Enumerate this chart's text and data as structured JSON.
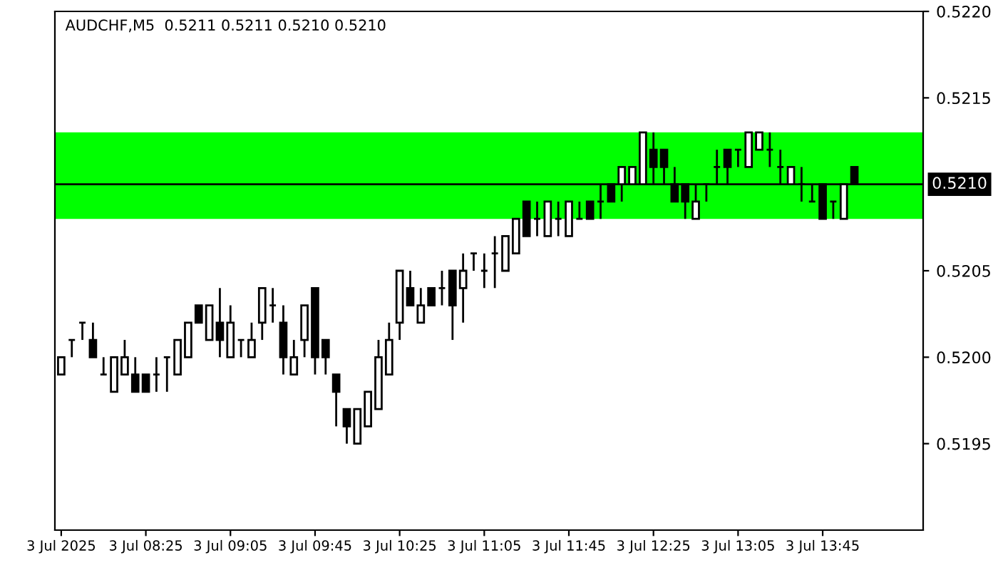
{
  "chart_data": {
    "type": "candlestick",
    "title": "AUDCHF,M5  0.5211 0.5211 0.5210 0.5210",
    "color": "#000000",
    "categories": [
      "3 Jul 2025",
      null,
      null,
      null,
      null,
      null,
      null,
      null,
      "3 Jul 08:25",
      null,
      null,
      null,
      null,
      null,
      null,
      null,
      "3 Jul 09:05",
      null,
      null,
      null,
      null,
      null,
      null,
      null,
      "3 Jul 09:45",
      null,
      null,
      null,
      null,
      null,
      null,
      null,
      "3 Jul 10:25",
      null,
      null,
      null,
      null,
      null,
      null,
      null,
      "3 Jul 11:05",
      null,
      null,
      null,
      null,
      null,
      null,
      null,
      "3 Jul 11:45",
      null,
      null,
      null,
      null,
      null,
      null,
      null,
      "3 Jul 12:25",
      null,
      null,
      null,
      null,
      null,
      null,
      null,
      "3 Jul 13:05",
      null,
      null,
      null,
      null,
      null,
      null,
      null,
      "3 Jul 13:45",
      null,
      null,
      null
    ],
    "ohlc": [
      [
        0.5199,
        0.52,
        0.5199,
        0.52
      ],
      [
        0.5201,
        0.5201,
        0.52,
        0.5201
      ],
      [
        0.5202,
        0.5202,
        0.5201,
        0.5202
      ],
      [
        0.5201,
        0.5202,
        0.52,
        0.52
      ],
      [
        0.5199,
        0.52,
        0.5199,
        0.5199
      ],
      [
        0.5198,
        0.52,
        0.5198,
        0.52
      ],
      [
        0.5199,
        0.5201,
        0.5199,
        0.52
      ],
      [
        0.5199,
        0.52,
        0.5198,
        0.5198
      ],
      [
        0.5199,
        0.5199,
        0.5198,
        0.5198
      ],
      [
        0.5199,
        0.52,
        0.5198,
        0.5199
      ],
      [
        0.52,
        0.52,
        0.5198,
        0.52
      ],
      [
        0.5199,
        0.5201,
        0.5199,
        0.5201
      ],
      [
        0.52,
        0.5202,
        0.52,
        0.5202
      ],
      [
        0.5203,
        0.5203,
        0.5202,
        0.5202
      ],
      [
        0.5201,
        0.5203,
        0.5201,
        0.5203
      ],
      [
        0.5202,
        0.5204,
        0.52,
        0.5201
      ],
      [
        0.52,
        0.5203,
        0.52,
        0.5202
      ],
      [
        0.5201,
        0.5201,
        0.52,
        0.5201
      ],
      [
        0.52,
        0.5202,
        0.52,
        0.5201
      ],
      [
        0.5202,
        0.5204,
        0.5201,
        0.5204
      ],
      [
        0.5203,
        0.5204,
        0.5202,
        0.5203
      ],
      [
        0.5202,
        0.5203,
        0.5199,
        0.52
      ],
      [
        0.5199,
        0.5201,
        0.5199,
        0.52
      ],
      [
        0.5201,
        0.5203,
        0.52,
        0.5203
      ],
      [
        0.5204,
        0.5204,
        0.5199,
        0.52
      ],
      [
        0.5201,
        0.5201,
        0.5199,
        0.52
      ],
      [
        0.5199,
        0.5199,
        0.5196,
        0.5198
      ],
      [
        0.5197,
        0.5197,
        0.5195,
        0.5196
      ],
      [
        0.5195,
        0.5197,
        0.5195,
        0.5197
      ],
      [
        0.5196,
        0.5198,
        0.5196,
        0.5198
      ],
      [
        0.5197,
        0.5201,
        0.5197,
        0.52
      ],
      [
        0.5199,
        0.5202,
        0.5199,
        0.5201
      ],
      [
        0.5202,
        0.5205,
        0.5201,
        0.5205
      ],
      [
        0.5204,
        0.5205,
        0.5203,
        0.5203
      ],
      [
        0.5202,
        0.5204,
        0.5202,
        0.5203
      ],
      [
        0.5204,
        0.5204,
        0.5203,
        0.5203
      ],
      [
        0.5204,
        0.5205,
        0.5203,
        0.5204
      ],
      [
        0.5205,
        0.5205,
        0.5201,
        0.5203
      ],
      [
        0.5204,
        0.5206,
        0.5202,
        0.5205
      ],
      [
        0.5206,
        0.5206,
        0.5205,
        0.5206
      ],
      [
        0.5205,
        0.5206,
        0.5204,
        0.5205
      ],
      [
        0.5206,
        0.5207,
        0.5204,
        0.5206
      ],
      [
        0.5205,
        0.5207,
        0.5205,
        0.5207
      ],
      [
        0.5206,
        0.5208,
        0.5206,
        0.5208
      ],
      [
        0.5209,
        0.5209,
        0.5207,
        0.5207
      ],
      [
        0.5208,
        0.5209,
        0.5207,
        0.5208
      ],
      [
        0.5207,
        0.5209,
        0.5207,
        0.5209
      ],
      [
        0.5208,
        0.5209,
        0.5207,
        0.5208
      ],
      [
        0.5207,
        0.5209,
        0.5207,
        0.5209
      ],
      [
        0.5208,
        0.5209,
        0.5208,
        0.5208
      ],
      [
        0.5209,
        0.5209,
        0.5208,
        0.5208
      ],
      [
        0.5209,
        0.521,
        0.5208,
        0.5209
      ],
      [
        0.521,
        0.521,
        0.5209,
        0.5209
      ],
      [
        0.521,
        0.5211,
        0.5209,
        0.5211
      ],
      [
        0.521,
        0.5211,
        0.521,
        0.5211
      ],
      [
        0.521,
        0.5213,
        0.521,
        0.5213
      ],
      [
        0.5212,
        0.5213,
        0.521,
        0.5211
      ],
      [
        0.5212,
        0.5212,
        0.521,
        0.5211
      ],
      [
        0.521,
        0.5211,
        0.5209,
        0.5209
      ],
      [
        0.521,
        0.521,
        0.5208,
        0.5209
      ],
      [
        0.5208,
        0.521,
        0.5208,
        0.5209
      ],
      [
        0.521,
        0.521,
        0.5209,
        0.521
      ],
      [
        0.5211,
        0.5212,
        0.521,
        0.5211
      ],
      [
        0.5212,
        0.5212,
        0.521,
        0.5211
      ],
      [
        0.5212,
        0.5212,
        0.5211,
        0.5212
      ],
      [
        0.5211,
        0.5213,
        0.5211,
        0.5213
      ],
      [
        0.5212,
        0.5213,
        0.5212,
        0.5213
      ],
      [
        0.5212,
        0.5213,
        0.5211,
        0.5212
      ],
      [
        0.5211,
        0.5212,
        0.521,
        0.5211
      ],
      [
        0.521,
        0.5211,
        0.521,
        0.5211
      ],
      [
        0.521,
        0.5211,
        0.5209,
        0.521
      ],
      [
        0.5209,
        0.521,
        0.5209,
        0.5209
      ],
      [
        0.521,
        0.521,
        0.5208,
        0.5208
      ],
      [
        0.5209,
        0.5209,
        0.5208,
        0.5209
      ],
      [
        0.5208,
        0.521,
        0.5208,
        0.521
      ],
      [
        0.5211,
        0.5211,
        0.521,
        0.521
      ]
    ],
    "ylim": [
      0.519,
      0.522
    ],
    "yticks": [
      {
        "value": 0.5195,
        "label": "0.5195"
      },
      {
        "value": 0.52,
        "label": "0.5200"
      },
      {
        "value": 0.5205,
        "label": "0.5205"
      },
      {
        "value": 0.5215,
        "label": "0.5215"
      },
      {
        "value": 0.522,
        "label": "0.5220"
      }
    ],
    "ref_lines": [
      {
        "axis": "y",
        "value": 0.521,
        "label": "0.5210",
        "color": "#000000"
      }
    ],
    "bands": [
      {
        "axis": "y",
        "from": 0.5208,
        "to": 0.5213,
        "color": "#00ff00"
      }
    ],
    "grid": false
  }
}
